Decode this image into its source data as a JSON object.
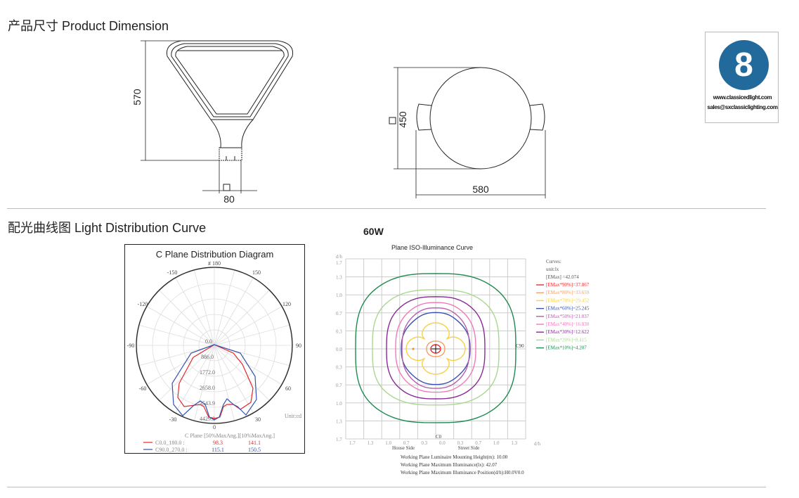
{
  "sections": {
    "dimension_title": "产品尺寸 Product Dimension",
    "distribution_title": "配光曲线图 Light Distribution Curve"
  },
  "dimensions": {
    "height": "570",
    "base_width": "80",
    "diameter_vertical": "450",
    "overall_width": "580"
  },
  "logo": {
    "number": "8",
    "website": "www.classicedlight.com",
    "email": "sales@sxclassiclighting.com",
    "color": "#236a9c"
  },
  "power_label": "60W",
  "polar": {
    "title": "C Plane Distribution Diagram",
    "angle_labels": {
      "top": "# 180",
      "m150": "-150",
      "p150": "150",
      "m120": "-120",
      "p120": "120",
      "m90": "-90",
      "p90": "90",
      "m60": "-60",
      "p60": "60",
      "m30": "-30",
      "p30": "30",
      "zero": "0"
    },
    "ring_labels": [
      "0.0",
      "886.0",
      "1772.0",
      "2658.0",
      "3543.9",
      "4429.9"
    ],
    "unit": "Unit:cd",
    "legend_header": "C Plane  [50%MaxAng.][10%MaxAng.]",
    "series": [
      {
        "name": "C0.0_180.0  :",
        "half_max_angle": "98.3",
        "tenth_max_angle": "141.1",
        "color": "#e8262a"
      },
      {
        "name": "C90.0_270.0 :",
        "half_max_angle": "115.1",
        "tenth_max_angle": "150.5",
        "color": "#3553ad"
      }
    ]
  },
  "iso": {
    "title": "Plane ISO-Illuminance Curve",
    "y_axis_unit": "d/h",
    "x_axis_unit": "d/h",
    "y_ticks": [
      "1.7",
      "1.3",
      "1.0",
      "0.7",
      "0.3",
      "0.0",
      "0.3",
      "0.7",
      "1.0",
      "1.3",
      "1.7"
    ],
    "x_ticks": [
      "1.7",
      "1.3",
      "1.0",
      "0.7",
      "0.3",
      "0.0",
      "0.3",
      "0.7",
      "1.0",
      "1.3"
    ],
    "c0_label": "C0",
    "c90_label": "C90",
    "house_side": "House Side",
    "street_side": "Street Side",
    "legend": {
      "header": "Curves:",
      "unit": "unit:lx",
      "max": "[EMax]  =42.074",
      "items": [
        {
          "label": "[EMax*90%]=37.867",
          "color": "#ee2a2a"
        },
        {
          "label": "[EMax*80%]=33.659",
          "color": "#f4a060"
        },
        {
          "label": "[EMax*70%]=29.452",
          "color": "#f8d040"
        },
        {
          "label": "[EMax*60%]=25.245",
          "color": "#3a50b0"
        },
        {
          "label": "[EMax*50%]=21.037",
          "color": "#b85cb0"
        },
        {
          "label": "[EMax*40%]=16.830",
          "color": "#f07ab8"
        },
        {
          "label": "[EMax*30%]=12.622",
          "color": "#8a2a98"
        },
        {
          "label": "[EMax*20%]=8.415",
          "color": "#a8d890"
        },
        {
          "label": "[EMax*10%]=4.207",
          "color": "#1e8a4e"
        }
      ]
    },
    "notes": [
      "Working Plane Luminaire Mounting Height(m): 10.00",
      "Working Plane Maximum Illuminance(lx): 42.07",
      "Working Plane Maximum Illuminance Position(d/h):H0.0V0.0"
    ]
  }
}
